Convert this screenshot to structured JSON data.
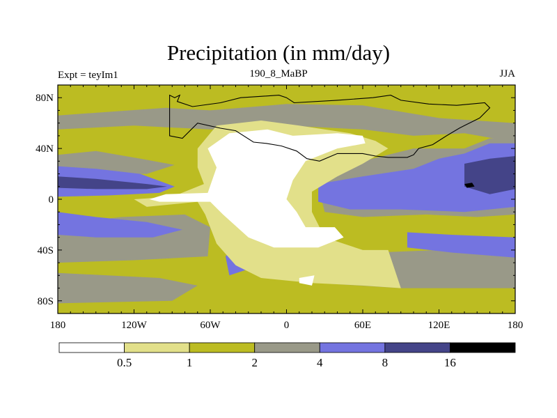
{
  "title": "Precipitation (in mm/day)",
  "left_label": "Expt = teyIm1",
  "center_label": "190_8_MaBP",
  "right_label": "JJA",
  "axes": {
    "x_ticks": [
      {
        "lon": -180,
        "label": "180"
      },
      {
        "lon": -120,
        "label": "120W"
      },
      {
        "lon": -60,
        "label": "60W"
      },
      {
        "lon": 0,
        "label": "0"
      },
      {
        "lon": 60,
        "label": "60E"
      },
      {
        "lon": 120,
        "label": "120E"
      },
      {
        "lon": 180,
        "label": "180"
      }
    ],
    "y_ticks": [
      {
        "lat": 80,
        "label": "80N"
      },
      {
        "lat": 40,
        "label": "40N"
      },
      {
        "lat": 0,
        "label": "0"
      },
      {
        "lat": -40,
        "label": "40S"
      },
      {
        "lat": -80,
        "label": "80S"
      }
    ]
  },
  "colorbar": {
    "thresholds": [
      "0.5",
      "1",
      "2",
      "4",
      "8",
      "16"
    ],
    "colors": [
      "#ffffff",
      "#e2e08a",
      "#bcbc22",
      "#999988",
      "#7474e0",
      "#444488",
      "#000000"
    ]
  },
  "chart_data": {
    "type": "heatmap",
    "title": "Precipitation (in mm/day)",
    "subtitle": "190_8_MaBP",
    "season": "JJA",
    "experiment": "teyIm1",
    "xlabel": "",
    "ylabel": "",
    "xlim": [
      -180,
      180
    ],
    "ylim": [
      -90,
      90
    ],
    "units": "mm/day",
    "levels": [
      0.5,
      1,
      2,
      4,
      8,
      16
    ],
    "regions": [
      {
        "name": "background-mid",
        "lev": 2,
        "pts": [
          [
            -180,
            90
          ],
          [
            180,
            90
          ],
          [
            180,
            -90
          ],
          [
            -180,
            -90
          ]
        ]
      },
      {
        "name": "n-highlat-band",
        "lev": 3,
        "pts": [
          [
            -180,
            66
          ],
          [
            -95,
            72
          ],
          [
            -60,
            70
          ],
          [
            0,
            75
          ],
          [
            60,
            74
          ],
          [
            120,
            64
          ],
          [
            180,
            60
          ],
          [
            180,
            45
          ],
          [
            140,
            52
          ],
          [
            100,
            50
          ],
          [
            60,
            55
          ],
          [
            0,
            58
          ],
          [
            -60,
            55
          ],
          [
            -120,
            58
          ],
          [
            -180,
            55
          ]
        ]
      },
      {
        "name": "n-midlat-band",
        "lev": 3,
        "pts": [
          [
            -180,
            35
          ],
          [
            -150,
            38
          ],
          [
            -115,
            32
          ],
          [
            -88,
            27
          ],
          [
            -110,
            20
          ],
          [
            -150,
            20
          ],
          [
            -180,
            22
          ]
        ]
      },
      {
        "name": "e-asia-wet",
        "lev": 3,
        "pts": [
          [
            35,
            22
          ],
          [
            60,
            30
          ],
          [
            100,
            40
          ],
          [
            140,
            40
          ],
          [
            160,
            48
          ],
          [
            180,
            48
          ],
          [
            180,
            -12
          ],
          [
            150,
            -14
          ],
          [
            110,
            -12
          ],
          [
            60,
            -14
          ],
          [
            30,
            -10
          ],
          [
            25,
            10
          ]
        ]
      },
      {
        "name": "s-midlat-band",
        "lev": 3,
        "pts": [
          [
            -180,
            -20
          ],
          [
            -130,
            -14
          ],
          [
            -80,
            -12
          ],
          [
            -60,
            -22
          ],
          [
            -62,
            -45
          ],
          [
            -120,
            -48
          ],
          [
            -180,
            -50
          ]
        ]
      },
      {
        "name": "s-indian-band",
        "lev": 3,
        "pts": [
          [
            20,
            -42
          ],
          [
            70,
            -42
          ],
          [
            120,
            -40
          ],
          [
            180,
            -42
          ],
          [
            180,
            -70
          ],
          [
            90,
            -70
          ],
          [
            25,
            -66
          ]
        ]
      },
      {
        "name": "s-highlat-band",
        "lev": 3,
        "pts": [
          [
            -180,
            -58
          ],
          [
            -100,
            -62
          ],
          [
            -70,
            -68
          ],
          [
            -90,
            -80
          ],
          [
            -180,
            -82
          ]
        ]
      },
      {
        "name": "n-pac-itcz",
        "lev": 4,
        "pts": [
          [
            -180,
            26
          ],
          [
            -150,
            24
          ],
          [
            -115,
            20
          ],
          [
            -88,
            10
          ],
          [
            -100,
            5
          ],
          [
            -140,
            3
          ],
          [
            -180,
            2
          ]
        ]
      },
      {
        "name": "s-pac-rain",
        "lev": 4,
        "pts": [
          [
            -180,
            -10
          ],
          [
            -150,
            -14
          ],
          [
            -110,
            -18
          ],
          [
            -82,
            -24
          ],
          [
            -105,
            -30
          ],
          [
            -150,
            -30
          ],
          [
            -180,
            -28
          ]
        ]
      },
      {
        "name": "e-tethys-itcz",
        "lev": 4,
        "pts": [
          [
            25,
            12
          ],
          [
            60,
            18
          ],
          [
            100,
            24
          ],
          [
            120,
            32
          ],
          [
            140,
            36
          ],
          [
            160,
            44
          ],
          [
            180,
            44
          ],
          [
            180,
            -6
          ],
          [
            140,
            -10
          ],
          [
            90,
            -8
          ],
          [
            50,
            -8
          ],
          [
            25,
            -2
          ]
        ]
      },
      {
        "name": "s-ind-rain",
        "lev": 4,
        "pts": [
          [
            95,
            -26
          ],
          [
            130,
            -28
          ],
          [
            180,
            -30
          ],
          [
            180,
            -46
          ],
          [
            130,
            -42
          ],
          [
            95,
            -38
          ]
        ]
      },
      {
        "name": "sw-gondwana-rain",
        "lev": 4,
        "pts": [
          [
            -38,
            -36
          ],
          [
            -28,
            -40
          ],
          [
            -30,
            -55
          ],
          [
            -45,
            -60
          ],
          [
            -48,
            -45
          ]
        ]
      },
      {
        "name": "w-pac-core",
        "lev": 5,
        "pts": [
          [
            -180,
            18
          ],
          [
            -150,
            16
          ],
          [
            -110,
            12
          ],
          [
            -94,
            10
          ],
          [
            -110,
            8
          ],
          [
            -150,
            8
          ],
          [
            -180,
            9
          ]
        ]
      },
      {
        "name": "e-tethys-core",
        "lev": 5,
        "pts": [
          [
            140,
            28
          ],
          [
            160,
            32
          ],
          [
            180,
            34
          ],
          [
            180,
            8
          ],
          [
            160,
            4
          ],
          [
            140,
            10
          ]
        ]
      },
      {
        "name": "e-tethys-peak",
        "lev": 6,
        "pts": [
          [
            140,
            12
          ],
          [
            146,
            13
          ],
          [
            148,
            10
          ],
          [
            142,
            9
          ]
        ]
      },
      {
        "name": "pangaea-semi-arid",
        "lev": 1,
        "pts": [
          [
            -70,
            40
          ],
          [
            -55,
            58
          ],
          [
            -20,
            62
          ],
          [
            10,
            58
          ],
          [
            50,
            52
          ],
          [
            70,
            46
          ],
          [
            80,
            40
          ],
          [
            60,
            28
          ],
          [
            40,
            18
          ],
          [
            20,
            6
          ],
          [
            20,
            -10
          ],
          [
            30,
            -30
          ],
          [
            60,
            -40
          ],
          [
            80,
            -40
          ],
          [
            90,
            -70
          ],
          [
            60,
            -68
          ],
          [
            20,
            -66
          ],
          [
            -20,
            -62
          ],
          [
            -40,
            -52
          ],
          [
            -55,
            -35
          ],
          [
            -64,
            -12
          ],
          [
            -70,
            -2
          ],
          [
            -110,
            -6
          ],
          [
            -120,
            0
          ],
          [
            -90,
            2
          ],
          [
            -65,
            12
          ],
          [
            -70,
            25
          ]
        ]
      },
      {
        "name": "north-dry",
        "lev": 0,
        "pts": [
          [
            -62,
            40
          ],
          [
            -45,
            52
          ],
          [
            -15,
            55
          ],
          [
            5,
            50
          ],
          [
            40,
            52
          ],
          [
            60,
            50
          ],
          [
            62,
            44
          ],
          [
            40,
            40
          ],
          [
            15,
            30
          ],
          [
            5,
            15
          ],
          [
            0,
            0
          ],
          [
            8,
            -10
          ],
          [
            15,
            -22
          ],
          [
            38,
            -22
          ],
          [
            45,
            -30
          ],
          [
            25,
            -38
          ],
          [
            -10,
            -38
          ],
          [
            -30,
            -30
          ],
          [
            -50,
            -12
          ],
          [
            -60,
            -2
          ],
          [
            -100,
            -2
          ],
          [
            -108,
            0
          ],
          [
            -95,
            4
          ],
          [
            -62,
            5
          ],
          [
            -55,
            25
          ]
        ]
      },
      {
        "name": "south-dry-spot",
        "lev": 0,
        "pts": [
          [
            10,
            -62
          ],
          [
            22,
            -60
          ],
          [
            20,
            -68
          ],
          [
            10,
            -66
          ]
        ]
      }
    ]
  },
  "land_outline": [
    [
      -92,
      82
    ],
    [
      -88,
      80
    ],
    [
      -84,
      82
    ],
    [
      -86,
      77
    ],
    [
      -74,
      73
    ],
    [
      -52,
      76
    ],
    [
      -36,
      80
    ],
    [
      -6,
      82
    ],
    [
      0,
      80
    ],
    [
      6,
      76
    ],
    [
      40,
      78
    ],
    [
      68,
      80
    ],
    [
      82,
      82
    ],
    [
      90,
      78
    ],
    [
      112,
      75
    ],
    [
      134,
      74
    ],
    [
      156,
      76
    ],
    [
      160,
      72
    ],
    [
      152,
      64
    ],
    [
      140,
      58
    ],
    [
      136,
      56
    ],
    [
      126,
      50
    ],
    [
      115,
      43
    ],
    [
      104,
      40
    ],
    [
      100,
      35
    ],
    [
      95,
      33
    ],
    [
      80,
      33
    ],
    [
      70,
      34
    ],
    [
      60,
      36
    ],
    [
      40,
      36
    ],
    [
      26,
      30
    ],
    [
      16,
      32
    ],
    [
      8,
      38
    ],
    [
      -4,
      42
    ],
    [
      -16,
      44
    ],
    [
      -26,
      45
    ],
    [
      -40,
      54
    ],
    [
      -52,
      56
    ],
    [
      -70,
      60
    ],
    [
      -82,
      48
    ],
    [
      -92,
      50
    ],
    [
      -92,
      82
    ]
  ]
}
